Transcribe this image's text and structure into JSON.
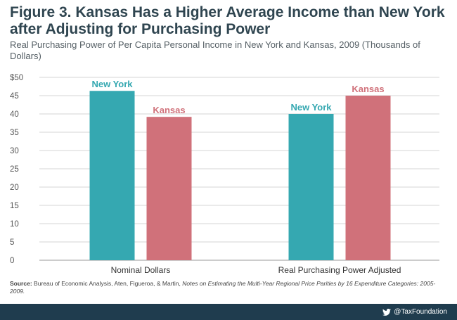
{
  "title": "Figure 3. Kansas Has a Higher Average Income than New York after Adjusting for Purchasing Power",
  "subtitle": "Real Purchasing Power of Per Capita Personal Income in New York and Kansas, 2009 (Thousands of Dollars)",
  "source": {
    "label": "Source:",
    "text": "Bureau of Economic Analysis, Aten, Figueroa, & Martin,",
    "italic": "Notes on Estimating the Multi-Year Regional Price Parities by 16 Expenditure Categories: 2005-2009."
  },
  "footer": {
    "icon": "twitter-icon",
    "handle": "@TaxFoundation"
  },
  "colors": {
    "new_york": "#35a8b1",
    "kansas": "#d0717a",
    "footer": "#1f3c4e",
    "title": "#2f4550"
  },
  "chart_data": {
    "type": "bar",
    "categories": [
      "Nominal Dollars",
      "Real Purchasing Power Adjusted"
    ],
    "series": [
      {
        "name": "New York",
        "values": [
          46.3,
          40.0
        ]
      },
      {
        "name": "Kansas",
        "values": [
          39.2,
          45.0
        ]
      }
    ],
    "ylim": [
      0,
      50
    ],
    "yticks": [
      0,
      5,
      10,
      15,
      20,
      25,
      30,
      35,
      40,
      45,
      50
    ],
    "ytick_labels": [
      "0",
      "5",
      "10",
      "15",
      "20",
      "25",
      "30",
      "35",
      "40",
      "45",
      "$50"
    ],
    "grid": true,
    "data_labels": "series names above bars"
  }
}
